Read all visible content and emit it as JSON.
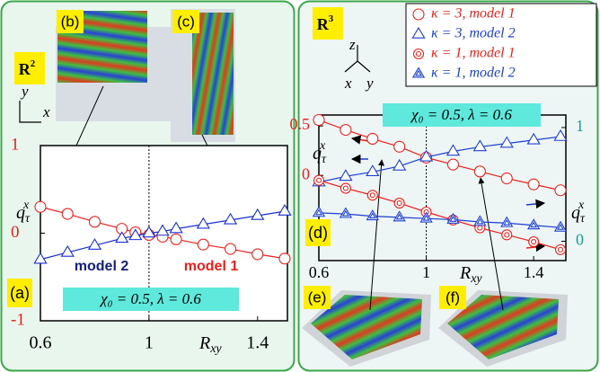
{
  "chart_data": [
    {
      "type": "line",
      "panel_label": "(a)",
      "inset_labels": [
        "(b)",
        "(c)"
      ],
      "space_label": {
        "base": "R",
        "sup": "2"
      },
      "axis_labels": [
        "y",
        "x"
      ],
      "x_label": {
        "base": "R",
        "sub": "xy"
      },
      "y_label": {
        "base": "q",
        "sub": "τ",
        "sup": "x"
      },
      "annotation": "χ₀ = 0.5, λ = 0.6",
      "vline": 1,
      "xlim": [
        0.6,
        1.51
      ],
      "xticks": [
        0.6,
        1,
        1.4
      ],
      "ylim": [
        -1,
        1
      ],
      "yticks": [
        -1,
        0,
        1
      ],
      "x": [
        0.6,
        0.7,
        0.8,
        0.9,
        0.95,
        1,
        1.05,
        1.1,
        1.2,
        1.3,
        1.4,
        1.5
      ],
      "series": [
        {
          "name": "model 1",
          "color": "#e8201a",
          "marker": "circle",
          "values": [
            0.3,
            0.22,
            0.13,
            0.05,
            0.01,
            -0.02,
            -0.04,
            -0.07,
            -0.13,
            -0.18,
            -0.24,
            -0.29
          ]
        },
        {
          "name": "model 2",
          "color": "#1a2fd0",
          "marker": "triangle",
          "values": [
            -0.3,
            -0.22,
            -0.14,
            -0.06,
            -0.03,
            0,
            0.02,
            0.05,
            0.1,
            0.15,
            0.2,
            0.25
          ]
        }
      ]
    },
    {
      "type": "line",
      "panel_label": "(d)",
      "inset_labels": [
        "(e)",
        "(f)"
      ],
      "space_label": {
        "base": "R",
        "sup": "3"
      },
      "axis_labels": [
        "z",
        "x",
        "y"
      ],
      "x_label": {
        "base": "R",
        "sub": "xy"
      },
      "y_label": {
        "base": "q",
        "sub": "τ",
        "sup": "x"
      },
      "y2_label": {
        "base": "q",
        "sub": "τ",
        "sup": "x"
      },
      "annotation": "χ₀ = 0.5, λ = 0.6",
      "vline": 1,
      "xlim": [
        0.6,
        1.52
      ],
      "xticks": [
        0.6,
        1,
        1.4
      ],
      "ylim": [
        -0.86,
        0.61
      ],
      "yticks": [
        0,
        0.5
      ],
      "y2lim": [
        -0.17,
        1.11
      ],
      "y2ticks": [
        0,
        1
      ],
      "x": [
        0.6,
        0.7,
        0.8,
        0.9,
        1,
        1.1,
        1.2,
        1.3,
        1.4,
        1.5
      ],
      "series": [
        {
          "name": "κ = 3, model 1",
          "color": "#e8201a",
          "marker": "circle",
          "values": [
            0.56,
            0.46,
            0.37,
            0.29,
            0.18,
            0.11,
            0.04,
            -0.03,
            -0.09,
            -0.15
          ]
        },
        {
          "name": "κ = 3, model 2",
          "color": "#1a3fd0",
          "marker": "triangle",
          "axis": "y2",
          "values": [
            0.52,
            0.57,
            0.61,
            0.66,
            0.74,
            0.79,
            0.83,
            0.86,
            0.89,
            0.92
          ]
        },
        {
          "name": "κ = 1, model 1",
          "color": "#e8201a",
          "marker": "double-circle",
          "values": [
            -0.05,
            -0.13,
            -0.2,
            -0.28,
            -0.37,
            -0.45,
            -0.53,
            -0.6,
            -0.67,
            -0.75
          ]
        },
        {
          "name": "κ = 1, model 2",
          "color": "#1a3fd0",
          "marker": "double-triangle",
          "axis": "y2",
          "values": [
            0.25,
            0.24,
            0.22,
            0.21,
            0.2,
            0.19,
            0.17,
            0.16,
            0.14,
            0.12
          ]
        }
      ]
    }
  ]
}
